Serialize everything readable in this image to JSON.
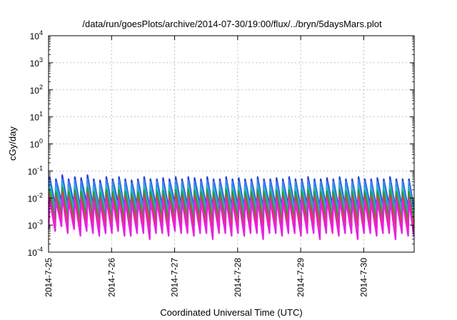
{
  "chart_data": {
    "type": "line",
    "title": "/data/run/goesPlots/archive/2014-07-30/19:00/flux/../bryn/5daysMars.plot",
    "xlabel": "Coordinated Universal Time (UTC)",
    "ylabel": "cGy/day",
    "yscale": "log",
    "ylim": [
      0.0001,
      10000
    ],
    "xlim": [
      0,
      5.8
    ],
    "x_unit": "days since 2014-7-25 00:00 UTC",
    "x_tick_values": [
      0,
      1,
      2,
      3,
      4,
      5
    ],
    "x_tick_labels": [
      "2014-7-25",
      "2014-7-26",
      "2014-7-27",
      "2014-7-28",
      "2014-7-29",
      "2014-7-30"
    ],
    "y_tick_values": [
      0.0001,
      0.001,
      0.01,
      0.1,
      1,
      10,
      100,
      1000,
      10000
    ],
    "y_tick_labels": [
      {
        "base": "10",
        "exp": "-4"
      },
      {
        "base": "10",
        "exp": "-3"
      },
      {
        "base": "10",
        "exp": "-2"
      },
      {
        "base": "10",
        "exp": "-1"
      },
      {
        "base": "10",
        "exp": "0"
      },
      {
        "base": "10",
        "exp": "1"
      },
      {
        "base": "10",
        "exp": "2"
      },
      {
        "base": "10",
        "exp": "3"
      },
      {
        "base": "10",
        "exp": "4"
      }
    ],
    "grid": true,
    "legend": "none",
    "period_days": 0.1,
    "series": [
      {
        "color": "#1f3fd9",
        "peak_values": [
          0.06,
          0.05,
          0.07,
          0.05,
          0.06,
          0.055,
          0.07,
          0.05,
          0.045,
          0.06,
          0.05,
          0.06,
          0.05,
          0.045,
          0.05,
          0.06,
          0.05,
          0.05,
          0.055,
          0.05,
          0.06,
          0.05,
          0.06,
          0.055,
          0.05,
          0.06,
          0.05,
          0.05,
          0.06,
          0.05,
          0.055,
          0.05,
          0.05,
          0.06,
          0.05,
          0.05,
          0.055,
          0.05,
          0.06,
          0.05,
          0.05,
          0.06,
          0.05,
          0.05,
          0.055,
          0.05,
          0.06,
          0.05,
          0.05,
          0.06,
          0.05,
          0.05,
          0.055,
          0.05,
          0.06,
          0.05,
          0.05,
          0.05
        ],
        "trough_values": [
          0.006,
          0.005,
          0.007,
          0.005,
          0.006,
          0.004,
          0.006,
          0.005,
          0.004,
          0.005,
          0.005,
          0.006,
          0.004,
          0.004,
          0.005,
          0.005,
          0.004,
          0.005,
          0.005,
          0.004,
          0.006,
          0.005,
          0.005,
          0.004,
          0.005,
          0.005,
          0.004,
          0.005,
          0.005,
          0.004,
          0.005,
          0.004,
          0.005,
          0.005,
          0.004,
          0.005,
          0.005,
          0.004,
          0.005,
          0.005,
          0.004,
          0.005,
          0.005,
          0.004,
          0.005,
          0.005,
          0.004,
          0.005,
          0.005,
          0.004,
          0.005,
          0.005,
          0.004,
          0.005,
          0.005,
          0.004,
          0.005,
          0.004
        ]
      },
      {
        "color": "#3f86e8",
        "peak_values": [
          0.045,
          0.04,
          0.05,
          0.04,
          0.045,
          0.04,
          0.05,
          0.04,
          0.035,
          0.045,
          0.04,
          0.045,
          0.04,
          0.035,
          0.04,
          0.045,
          0.04,
          0.04,
          0.04,
          0.04,
          0.045,
          0.04,
          0.045,
          0.04,
          0.04,
          0.045,
          0.04,
          0.04,
          0.045,
          0.04,
          0.04,
          0.04,
          0.04,
          0.045,
          0.04,
          0.04,
          0.04,
          0.04,
          0.045,
          0.04,
          0.04,
          0.045,
          0.04,
          0.04,
          0.04,
          0.04,
          0.045,
          0.04,
          0.04,
          0.045,
          0.04,
          0.04,
          0.04,
          0.04,
          0.045,
          0.04,
          0.04,
          0.04
        ],
        "trough_values": [
          0.004,
          0.0035,
          0.005,
          0.0035,
          0.004,
          0.003,
          0.004,
          0.0035,
          0.003,
          0.0035,
          0.0035,
          0.004,
          0.003,
          0.003,
          0.0035,
          0.0035,
          0.003,
          0.0035,
          0.0035,
          0.003,
          0.004,
          0.0035,
          0.0035,
          0.003,
          0.0035,
          0.0035,
          0.003,
          0.0035,
          0.0035,
          0.003,
          0.0035,
          0.003,
          0.0035,
          0.0035,
          0.003,
          0.0035,
          0.0035,
          0.003,
          0.0035,
          0.0035,
          0.003,
          0.0035,
          0.0035,
          0.003,
          0.0035,
          0.0035,
          0.003,
          0.0035,
          0.0035,
          0.003,
          0.0035,
          0.0035,
          0.003,
          0.0035,
          0.0035,
          0.003,
          0.0035,
          0.003
        ]
      },
      {
        "color": "#22b8c8",
        "peak_values": [
          0.03,
          0.025,
          0.035,
          0.025,
          0.03,
          0.025,
          0.035,
          0.025,
          0.022,
          0.03,
          0.025,
          0.03,
          0.025,
          0.022,
          0.025,
          0.03,
          0.025,
          0.025,
          0.027,
          0.025,
          0.03,
          0.025,
          0.03,
          0.027,
          0.025,
          0.03,
          0.025,
          0.025,
          0.03,
          0.025,
          0.027,
          0.025,
          0.025,
          0.03,
          0.025,
          0.025,
          0.027,
          0.025,
          0.03,
          0.025,
          0.025,
          0.03,
          0.025,
          0.025,
          0.027,
          0.025,
          0.03,
          0.025,
          0.025,
          0.03,
          0.025,
          0.025,
          0.027,
          0.025,
          0.03,
          0.025,
          0.025,
          0.025
        ],
        "trough_values": [
          0.003,
          0.0025,
          0.0035,
          0.0025,
          0.003,
          0.002,
          0.003,
          0.0025,
          0.002,
          0.0025,
          0.0025,
          0.003,
          0.002,
          0.002,
          0.0025,
          0.0025,
          0.002,
          0.0025,
          0.0025,
          0.002,
          0.003,
          0.0025,
          0.0025,
          0.002,
          0.0025,
          0.0025,
          0.002,
          0.0025,
          0.0025,
          0.002,
          0.0025,
          0.002,
          0.0025,
          0.0025,
          0.002,
          0.0025,
          0.0025,
          0.002,
          0.0025,
          0.0025,
          0.002,
          0.0025,
          0.0025,
          0.002,
          0.0025,
          0.0025,
          0.002,
          0.0025,
          0.0025,
          0.002,
          0.0025,
          0.0025,
          0.002,
          0.0025,
          0.0025,
          0.002,
          0.0025,
          0.002
        ]
      },
      {
        "color": "#2f9a3f",
        "peak_values": [
          0.02,
          0.017,
          0.024,
          0.017,
          0.02,
          0.017,
          0.024,
          0.017,
          0.015,
          0.02,
          0.017,
          0.02,
          0.017,
          0.015,
          0.017,
          0.02,
          0.017,
          0.017,
          0.018,
          0.017,
          0.02,
          0.017,
          0.02,
          0.018,
          0.017,
          0.02,
          0.017,
          0.017,
          0.02,
          0.017,
          0.018,
          0.017,
          0.017,
          0.02,
          0.017,
          0.017,
          0.018,
          0.017,
          0.02,
          0.017,
          0.017,
          0.02,
          0.017,
          0.017,
          0.018,
          0.017,
          0.02,
          0.017,
          0.017,
          0.02,
          0.017,
          0.017,
          0.018,
          0.017,
          0.02,
          0.017,
          0.017,
          0.017
        ],
        "trough_values": [
          0.002,
          0.0017,
          0.0024,
          0.0017,
          0.002,
          0.0014,
          0.002,
          0.0017,
          0.0014,
          0.0017,
          0.0017,
          0.002,
          0.0014,
          0.0014,
          0.0017,
          0.0017,
          0.0014,
          0.0017,
          0.0017,
          0.0014,
          0.002,
          0.0017,
          0.0017,
          0.0014,
          0.0017,
          0.0017,
          0.0014,
          0.0017,
          0.0017,
          0.0014,
          0.0017,
          0.0014,
          0.0017,
          0.0017,
          0.0014,
          0.0017,
          0.0017,
          0.0014,
          0.0017,
          0.0017,
          0.0014,
          0.0017,
          0.0017,
          0.0014,
          0.0017,
          0.0017,
          0.0014,
          0.0017,
          0.0017,
          0.0014,
          0.0017,
          0.0017,
          0.0014,
          0.0017,
          0.0017,
          0.0014,
          0.0017,
          0.0014
        ]
      },
      {
        "color": "#d8423a",
        "peak_values": [
          0.013,
          0.011,
          0.016,
          0.011,
          0.013,
          0.011,
          0.016,
          0.011,
          0.01,
          0.013,
          0.011,
          0.013,
          0.011,
          0.01,
          0.011,
          0.013,
          0.011,
          0.011,
          0.012,
          0.011,
          0.013,
          0.011,
          0.013,
          0.012,
          0.011,
          0.013,
          0.011,
          0.011,
          0.013,
          0.011,
          0.012,
          0.011,
          0.011,
          0.013,
          0.011,
          0.011,
          0.012,
          0.011,
          0.013,
          0.011,
          0.011,
          0.013,
          0.011,
          0.011,
          0.012,
          0.011,
          0.013,
          0.011,
          0.011,
          0.013,
          0.011,
          0.011,
          0.012,
          0.011,
          0.013,
          0.011,
          0.011,
          0.011
        ],
        "trough_values": [
          0.0012,
          0.001,
          0.0015,
          0.001,
          0.0012,
          0.0008,
          0.0012,
          0.001,
          0.0008,
          0.001,
          0.001,
          0.0012,
          0.0008,
          0.0008,
          0.001,
          0.001,
          0.0008,
          0.001,
          0.001,
          0.0008,
          0.0012,
          0.001,
          0.001,
          0.0008,
          0.001,
          0.001,
          0.0008,
          0.001,
          0.001,
          0.0008,
          0.001,
          0.0008,
          0.001,
          0.001,
          0.0008,
          0.001,
          0.001,
          0.0008,
          0.001,
          0.001,
          0.0008,
          0.001,
          0.001,
          0.0008,
          0.001,
          0.001,
          0.0008,
          0.001,
          0.001,
          0.0008,
          0.001,
          0.001,
          0.0008,
          0.001,
          0.001,
          0.0008,
          0.001,
          0.0008
        ]
      },
      {
        "color": "#e81fe0",
        "peak_values": [
          0.009,
          0.008,
          0.011,
          0.008,
          0.009,
          0.008,
          0.011,
          0.008,
          0.007,
          0.009,
          0.008,
          0.009,
          0.008,
          0.007,
          0.008,
          0.009,
          0.008,
          0.008,
          0.0085,
          0.008,
          0.009,
          0.008,
          0.009,
          0.0085,
          0.008,
          0.009,
          0.008,
          0.008,
          0.009,
          0.008,
          0.0085,
          0.008,
          0.008,
          0.009,
          0.008,
          0.008,
          0.0085,
          0.008,
          0.009,
          0.008,
          0.008,
          0.009,
          0.008,
          0.008,
          0.0085,
          0.008,
          0.009,
          0.008,
          0.008,
          0.009,
          0.008,
          0.008,
          0.0085,
          0.008,
          0.009,
          0.008,
          0.008,
          0.008
        ],
        "trough_values": [
          0.0007,
          0.0006,
          0.0009,
          0.0005,
          0.0007,
          0.0004,
          0.0006,
          0.0005,
          0.0004,
          0.0005,
          0.0005,
          0.0006,
          0.0004,
          0.0004,
          0.0005,
          0.0005,
          0.0003,
          0.0005,
          0.0005,
          0.0004,
          0.0006,
          0.0005,
          0.0005,
          0.0004,
          0.0005,
          0.0005,
          0.0003,
          0.0005,
          0.0005,
          0.0004,
          0.0005,
          0.0004,
          0.0005,
          0.0005,
          0.0003,
          0.0005,
          0.0005,
          0.0004,
          0.0005,
          0.0005,
          0.0004,
          0.0005,
          0.0005,
          0.0003,
          0.0005,
          0.0005,
          0.0004,
          0.0005,
          0.0005,
          0.0003,
          0.0005,
          0.0005,
          0.0004,
          0.0005,
          0.0005,
          0.0003,
          0.0005,
          0.0004
        ]
      }
    ]
  }
}
